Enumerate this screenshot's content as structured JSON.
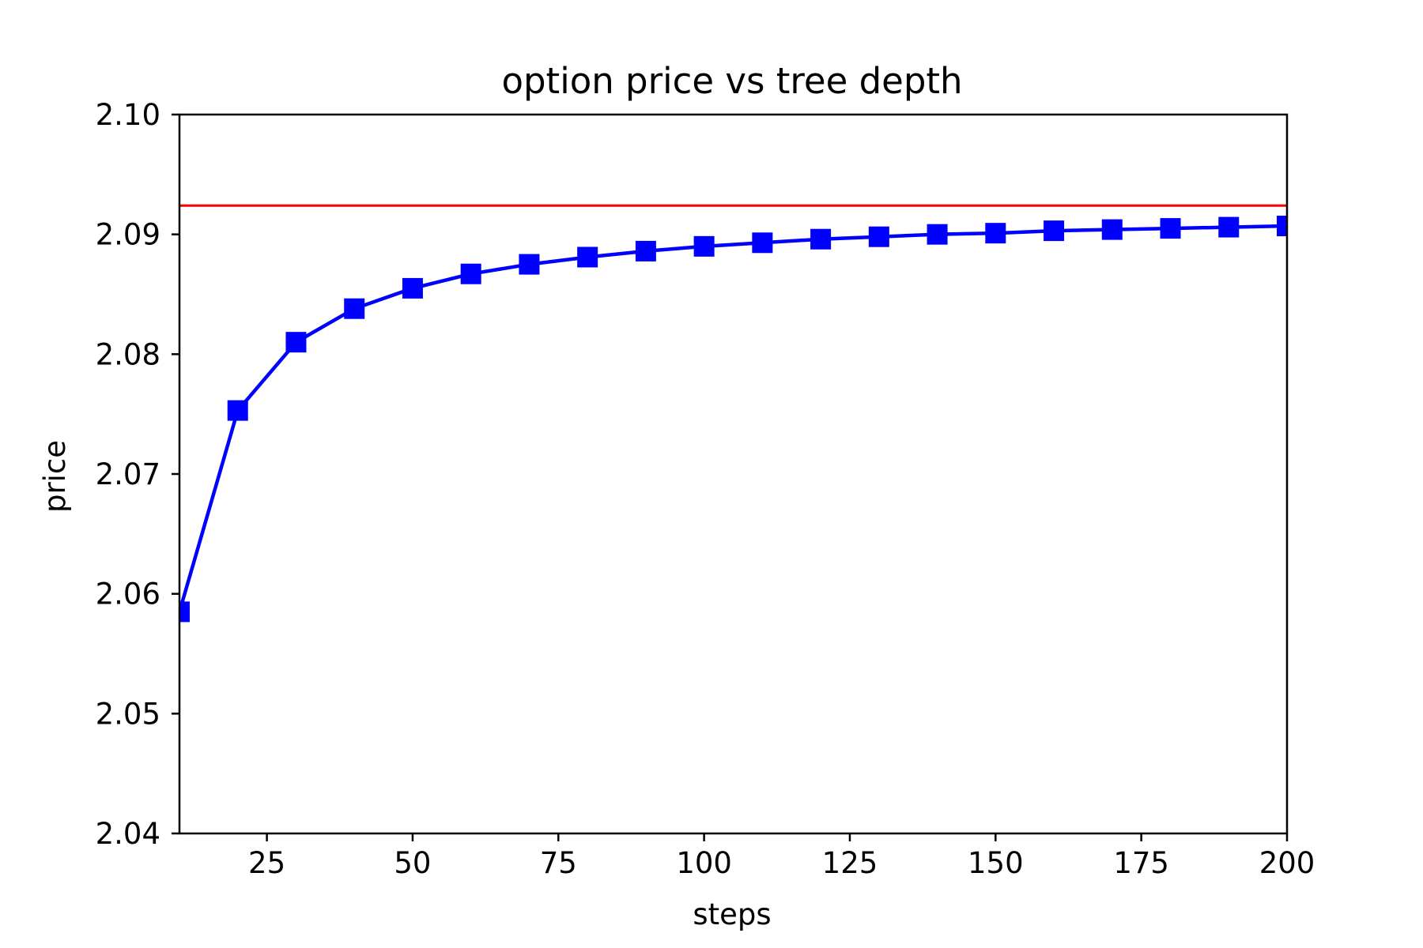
{
  "chart_data": {
    "type": "line",
    "title": "option price vs tree depth",
    "xlabel": "steps",
    "ylabel": "price",
    "xlim": [
      10,
      200
    ],
    "ylim": [
      2.04,
      2.1
    ],
    "xticks": [
      25,
      50,
      75,
      100,
      125,
      150,
      175,
      200
    ],
    "yticks": [
      2.04,
      2.05,
      2.06,
      2.07,
      2.08,
      2.09,
      2.1
    ],
    "xtick_labels": [
      "25",
      "50",
      "75",
      "100",
      "125",
      "150",
      "175",
      "200"
    ],
    "ytick_labels": [
      "2.04",
      "2.05",
      "2.06",
      "2.07",
      "2.08",
      "2.09",
      "2.10"
    ],
    "grid": false,
    "series": [
      {
        "color": "#0000ff",
        "marker": "square",
        "x": [
          10,
          20,
          30,
          40,
          50,
          60,
          70,
          80,
          90,
          100,
          110,
          120,
          130,
          140,
          150,
          160,
          170,
          180,
          190,
          200
        ],
        "y": [
          2.0585,
          2.0753,
          2.081,
          2.0838,
          2.0855,
          2.0867,
          2.0875,
          2.0881,
          2.0886,
          2.089,
          2.0893,
          2.0896,
          2.0898,
          2.09,
          2.0901,
          2.0903,
          2.0904,
          2.0905,
          2.0906,
          2.0907
        ]
      }
    ],
    "reference_lines": [
      {
        "orientation": "horizontal",
        "y": 2.0924,
        "color": "#ff0000"
      }
    ]
  }
}
